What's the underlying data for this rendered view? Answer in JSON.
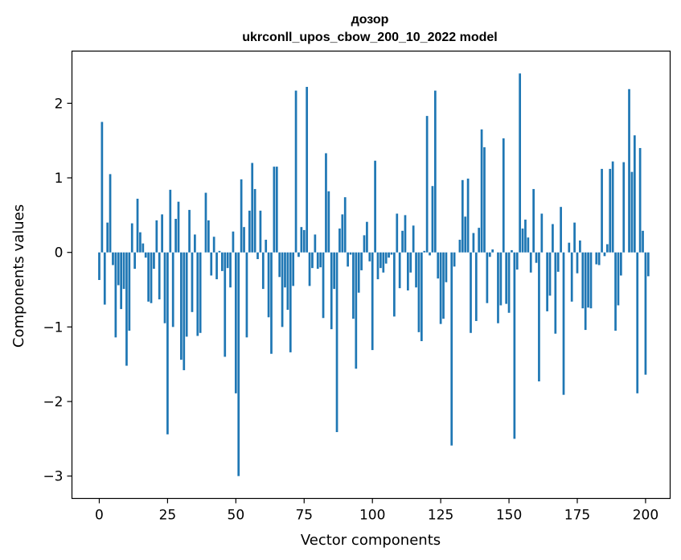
{
  "chart_data": {
    "type": "bar",
    "title_line1": "дозор",
    "title_line2": "ukrconll_upos_cbow_200_10_2022 model",
    "xlabel": "Vector components",
    "ylabel": "Components values",
    "xlim": [
      -10,
      209
    ],
    "ylim": [
      -3.3,
      2.7
    ],
    "xticks": [
      0,
      25,
      50,
      75,
      100,
      125,
      150,
      175,
      200
    ],
    "xtick_labels": [
      "0",
      "25",
      "50",
      "75",
      "100",
      "125",
      "150",
      "175",
      "200"
    ],
    "yticks": [
      -3,
      -2,
      -1,
      0,
      1,
      2
    ],
    "ytick_labels": [
      "−3",
      "−2",
      "−1",
      "0",
      "1",
      "2"
    ],
    "bar_color": "#1f77b4",
    "grid": false,
    "values": [
      -0.37,
      1.75,
      -0.7,
      0.4,
      1.05,
      -0.17,
      -1.14,
      -0.44,
      -0.76,
      -0.49,
      -1.52,
      -1.05,
      0.39,
      -0.22,
      0.72,
      0.27,
      0.12,
      -0.07,
      -0.66,
      -0.68,
      -0.22,
      0.43,
      -0.63,
      0.51,
      -0.95,
      -2.44,
      0.84,
      -1.0,
      0.45,
      0.68,
      -1.44,
      -1.58,
      -1.13,
      0.57,
      -0.8,
      0.24,
      -1.12,
      -1.08,
      0.0,
      0.8,
      0.43,
      -0.31,
      0.21,
      -0.36,
      0.02,
      -0.25,
      -1.4,
      -0.21,
      -0.47,
      0.28,
      -1.89,
      -3.0,
      0.98,
      0.34,
      -1.14,
      0.56,
      1.2,
      0.85,
      -0.09,
      0.56,
      -0.49,
      0.17,
      -0.87,
      -1.36,
      1.15,
      1.15,
      -0.33,
      -1.0,
      -0.47,
      -0.77,
      -1.34,
      -0.45,
      2.17,
      -0.06,
      0.34,
      0.3,
      2.22,
      -0.45,
      -0.21,
      0.24,
      -0.22,
      -0.2,
      -0.88,
      1.33,
      0.82,
      -1.03,
      -0.49,
      -2.41,
      0.32,
      0.51,
      0.74,
      -0.19,
      -0.03,
      -0.89,
      -1.56,
      -0.54,
      -0.24,
      0.23,
      0.41,
      -0.12,
      -1.31,
      1.23,
      -0.36,
      -0.21,
      -0.27,
      -0.15,
      -0.07,
      -0.03,
      -0.86,
      0.52,
      -0.48,
      0.29,
      0.5,
      -0.51,
      -0.27,
      0.36,
      -0.47,
      -1.07,
      -1.19,
      0.02,
      1.83,
      -0.04,
      0.89,
      2.17,
      -0.35,
      -0.96,
      -0.89,
      -0.4,
      0.0,
      -2.59,
      -0.19,
      0.0,
      0.17,
      0.97,
      0.48,
      0.99,
      -1.08,
      0.26,
      -0.92,
      0.33,
      1.65,
      1.41,
      -0.68,
      -0.06,
      0.04,
      0.0,
      -0.95,
      -0.71,
      1.53,
      -0.69,
      -0.81,
      0.03,
      -2.5,
      -0.23,
      2.4,
      0.32,
      0.44,
      0.2,
      -0.27,
      0.85,
      -0.14,
      -1.73,
      0.52,
      0.0,
      -0.79,
      -0.58,
      0.38,
      -1.09,
      -0.26,
      0.61,
      -1.91,
      0.0,
      0.13,
      -0.66,
      0.4,
      -0.28,
      0.16,
      -0.75,
      -1.04,
      -0.74,
      -0.75,
      0.0,
      -0.16,
      -0.17,
      1.12,
      -0.05,
      0.11,
      1.12,
      1.22,
      -1.05,
      -0.71,
      -0.31,
      1.21,
      0.0,
      2.19,
      1.08,
      1.57,
      -1.89,
      1.4,
      0.29,
      -1.64,
      -0.32
    ]
  }
}
